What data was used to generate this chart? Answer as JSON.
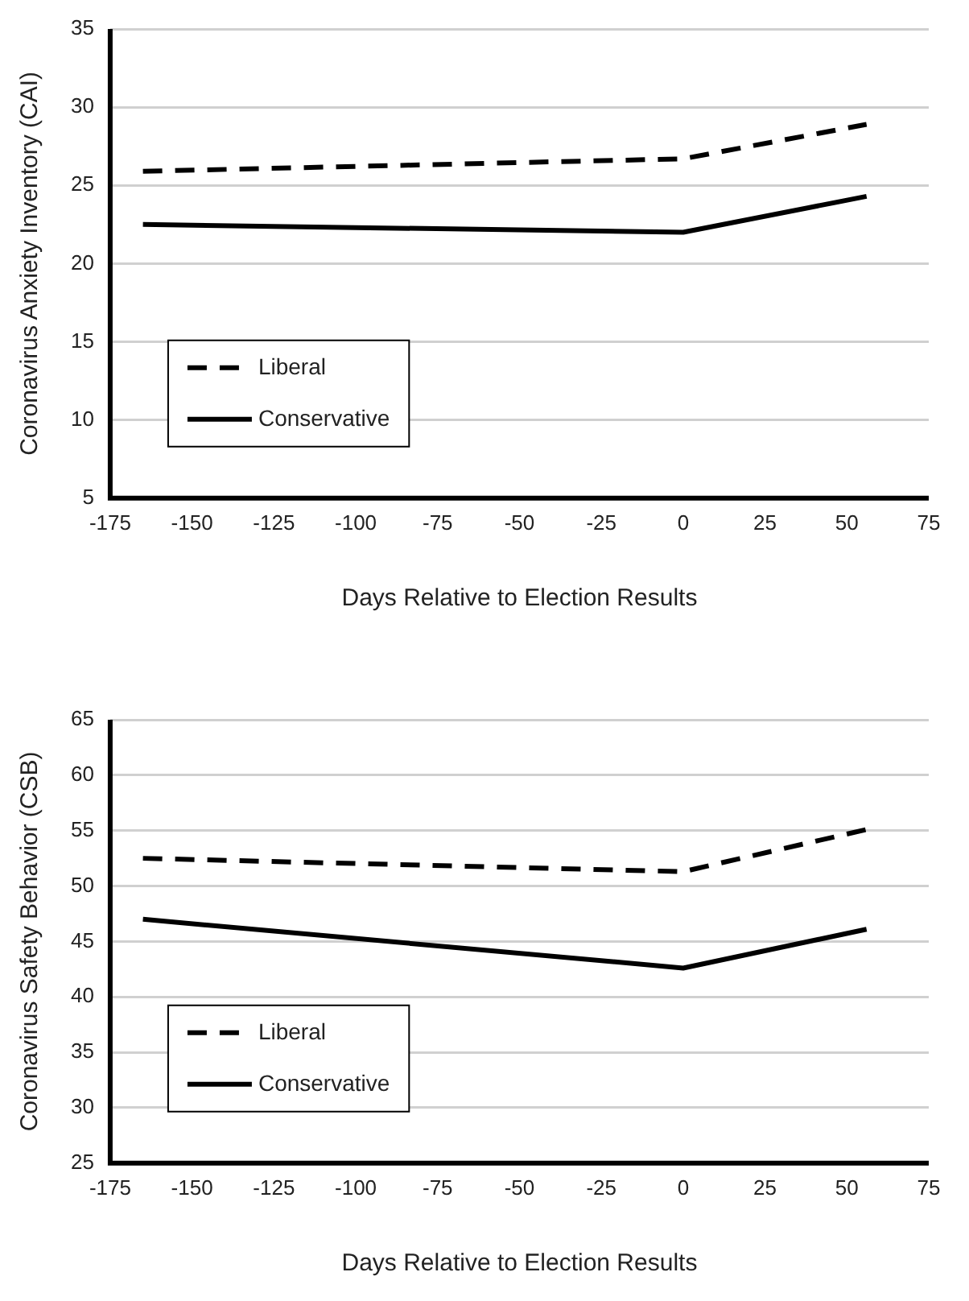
{
  "chart_data": [
    {
      "type": "line",
      "xlabel": "Days Relative to Election Results",
      "ylabel": "Coronavirus Anxiety Inventory (CAI)",
      "x": [
        -165,
        0,
        56
      ],
      "series": [
        {
          "name": "Liberal",
          "color": "#000000",
          "values": [
            25.9,
            26.7,
            28.9
          ],
          "line_style": "dashed"
        },
        {
          "name": "Conservative",
          "color": "#000000",
          "values": [
            22.5,
            22.0,
            24.3
          ],
          "line_style": "solid"
        }
      ],
      "xlim": [
        -175,
        75
      ],
      "xticks": [
        -175,
        -150,
        -125,
        -100,
        -75,
        -50,
        -25,
        0,
        25,
        50,
        75
      ],
      "ylim": [
        5,
        35
      ],
      "yticks": [
        5,
        10,
        15,
        20,
        25,
        30,
        35
      ],
      "grid": "y",
      "legend": "bottom left",
      "marker": "none"
    },
    {
      "type": "line",
      "xlabel": "Days Relative to Election Results",
      "ylabel": "Coronavirus Safety Behavior (CSB)",
      "x": [
        -165,
        0,
        56
      ],
      "series": [
        {
          "name": "Liberal",
          "color": "#000000",
          "values": [
            52.5,
            51.3,
            55.1
          ],
          "line_style": "dashed"
        },
        {
          "name": "Conservative",
          "color": "#000000",
          "values": [
            47.0,
            42.6,
            46.1
          ],
          "line_style": "solid"
        }
      ],
      "xlim": [
        -175,
        75
      ],
      "xticks": [
        -175,
        -150,
        -125,
        -100,
        -75,
        -50,
        -25,
        0,
        25,
        50,
        75
      ],
      "ylim": [
        25,
        65
      ],
      "yticks": [
        25,
        30,
        35,
        40,
        45,
        50,
        55,
        60,
        65
      ],
      "grid": "y",
      "legend": "bottom left",
      "marker": "none"
    }
  ]
}
